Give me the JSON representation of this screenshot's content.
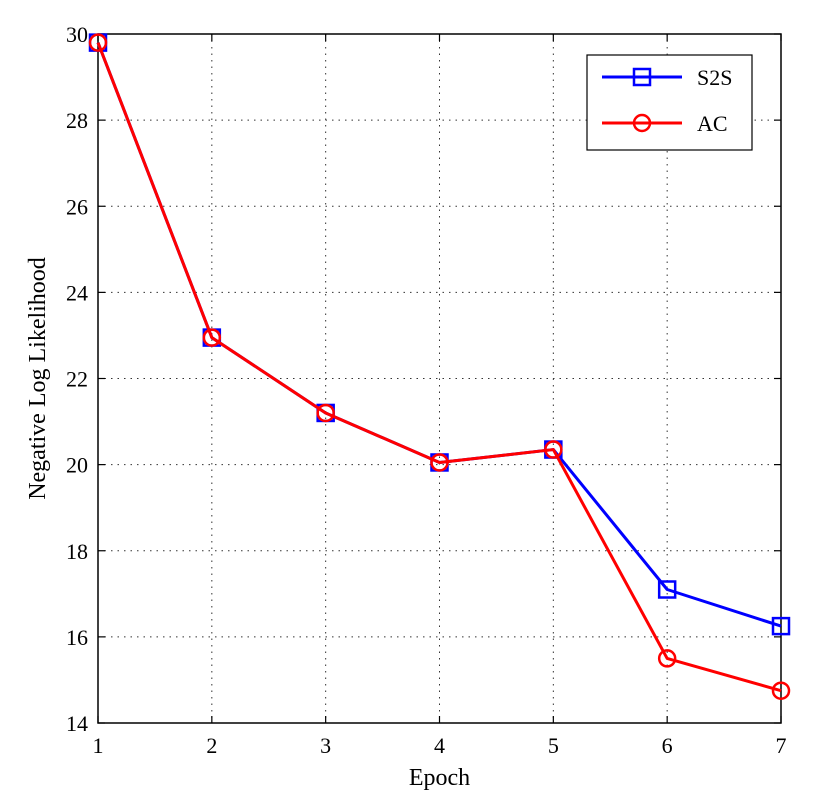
{
  "chart_data": {
    "type": "line",
    "title": "",
    "xlabel": "Epoch",
    "ylabel": "Negative Log Likelihood",
    "x": [
      1,
      2,
      3,
      4,
      5,
      6,
      7
    ],
    "xlim": [
      1,
      7
    ],
    "ylim": [
      14,
      30
    ],
    "xticks": [
      1,
      2,
      3,
      4,
      5,
      6,
      7
    ],
    "yticks": [
      14,
      16,
      18,
      20,
      22,
      24,
      26,
      28,
      30
    ],
    "grid": true,
    "legend_position": "top-right",
    "series": [
      {
        "name": "S2S",
        "color": "#0000ff",
        "marker": "square",
        "values": [
          29.8,
          22.95,
          21.2,
          20.05,
          20.35,
          17.1,
          16.25
        ]
      },
      {
        "name": "AC",
        "color": "#ff0000",
        "marker": "circle",
        "values": [
          29.8,
          22.95,
          21.2,
          20.05,
          20.35,
          15.5,
          14.75
        ]
      }
    ]
  }
}
